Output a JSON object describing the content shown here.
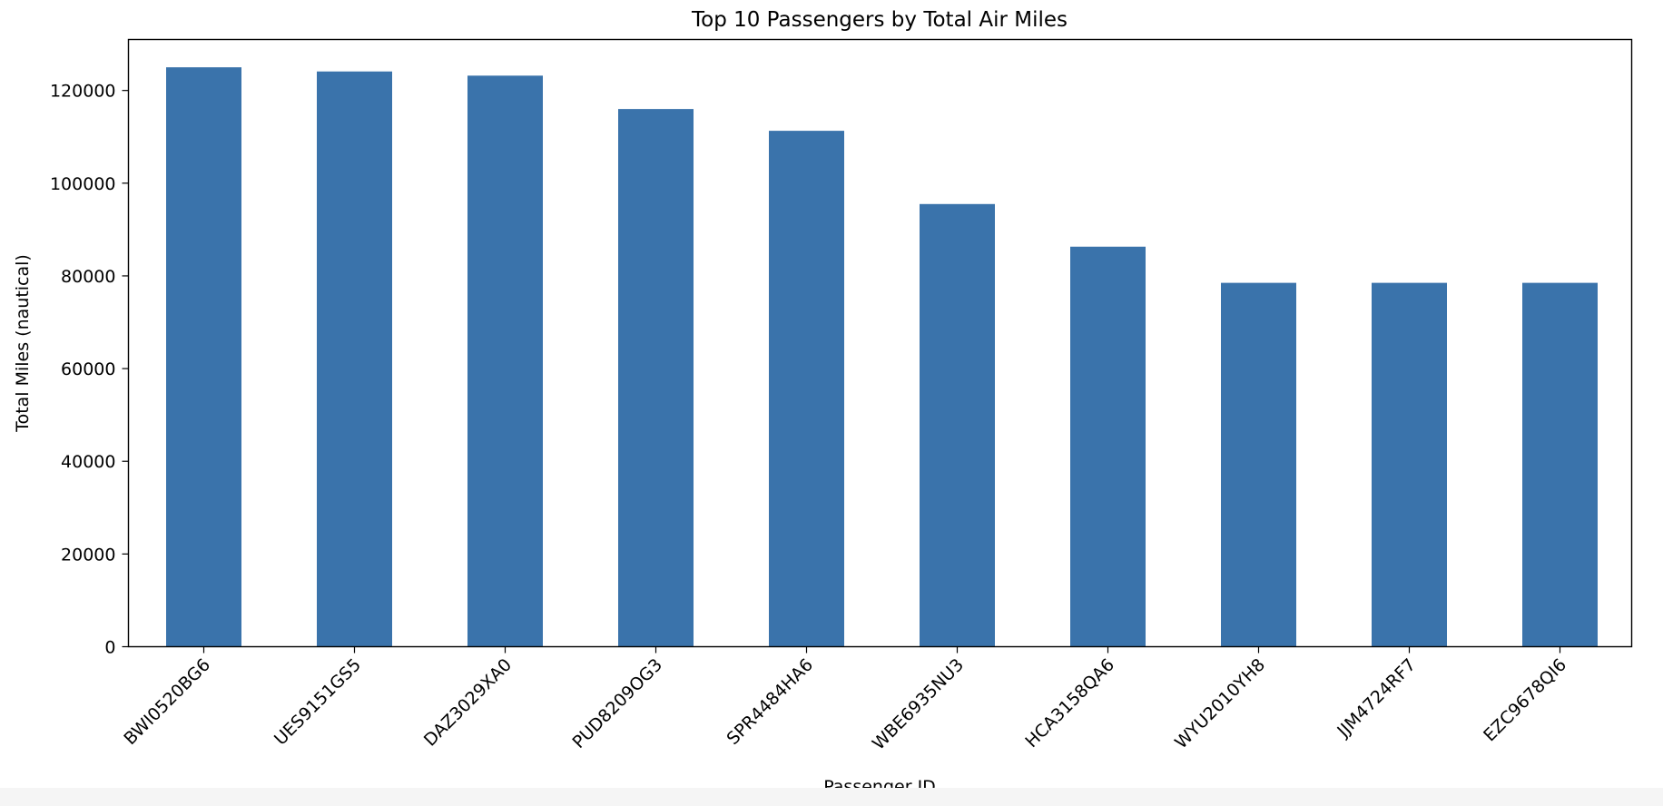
{
  "chart_data": {
    "type": "bar",
    "title": "Top 10 Passengers by Total Air Miles",
    "xlabel": "Passenger ID",
    "ylabel": "Total Miles (nautical)",
    "categories": [
      "BWI0520BG6",
      "UES9151GS5",
      "DAZ3029XA0",
      "PUD8209OG3",
      "SPR4484HA6",
      "WBE6935NU3",
      "HCA3158QA6",
      "WYU2010YH8",
      "JJM4724RF7",
      "EZC9678QI6"
    ],
    "values": [
      125000,
      124100,
      123200,
      116000,
      111300,
      95500,
      86300,
      78500,
      78500,
      78500
    ],
    "ylim": [
      0,
      131000
    ],
    "yticks": [
      0,
      20000,
      40000,
      60000,
      80000,
      100000,
      120000
    ],
    "bar_color": "#3a73ab",
    "grid": false,
    "legend": "none"
  }
}
